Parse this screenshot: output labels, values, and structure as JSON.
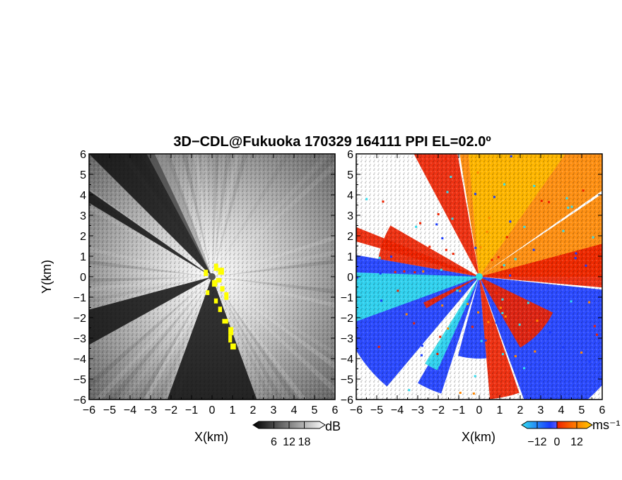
{
  "title": "3D−CDL@Fukuoka 170329 164111 PPI EL=02.0º",
  "chart_data": [
    {
      "type": "heatmap",
      "name": "reflectivity-panel",
      "xlabel": "X(km)",
      "ylabel": "Y(km)",
      "xlim": [
        -6,
        6
      ],
      "ylim": [
        -6,
        6
      ],
      "xticks": [
        -6,
        -5,
        -4,
        -3,
        -2,
        -1,
        0,
        1,
        2,
        3,
        4,
        5,
        6
      ],
      "yticks": [
        -6,
        -5,
        -4,
        -3,
        -2,
        -1,
        0,
        1,
        2,
        3,
        4,
        5,
        6
      ],
      "colorbar": {
        "unit": "dB",
        "ticks": [
          6,
          12,
          18
        ],
        "range": [
          0,
          24
        ],
        "colormap": "grayscale"
      },
      "radar_center": [
        0,
        0
      ],
      "shadow_sectors_deg": [
        [
          115,
          135
        ],
        [
          145,
          150
        ],
        [
          195,
          210
        ],
        [
          250,
          290
        ]
      ],
      "highlight_color": "#ffff00",
      "colors": {
        "low": "#111111",
        "high": "#ffffff",
        "center_marker": "#555555"
      }
    },
    {
      "type": "heatmap",
      "name": "velocity-panel",
      "xlabel": "X(km)",
      "ylabel": "",
      "xlim": [
        -6,
        6
      ],
      "ylim": [
        -6,
        6
      ],
      "xticks": [
        -6,
        -5,
        -4,
        -3,
        -2,
        -1,
        0,
        1,
        2,
        3,
        4,
        5,
        6
      ],
      "yticks": [
        -6,
        -5,
        -4,
        -3,
        -2,
        -1,
        0,
        1,
        2,
        3,
        4,
        5,
        6
      ],
      "colorbar": {
        "unit": "ms⁻¹",
        "ticks": [
          -12,
          0,
          12
        ],
        "range": [
          -18,
          18
        ],
        "colormap": "cyan-blue-red-orange"
      },
      "radar_center": [
        0,
        0
      ],
      "colors": {
        "cyan": "#33ddee",
        "blue": "#1a3cff",
        "red": "#ee2200",
        "orange": "#ff8800",
        "yellow": "#ffbb00",
        "center_marker": "#33dddd"
      }
    }
  ],
  "tick_labels": [
    "−6",
    "−5",
    "−4",
    "−3",
    "−2",
    "−1",
    "0",
    "1",
    "2",
    "3",
    "4",
    "5",
    "6"
  ],
  "cbar_left_ticks": [
    "6",
    "12",
    "18"
  ],
  "cbar_right_ticks": [
    "−12",
    "0",
    "12"
  ]
}
